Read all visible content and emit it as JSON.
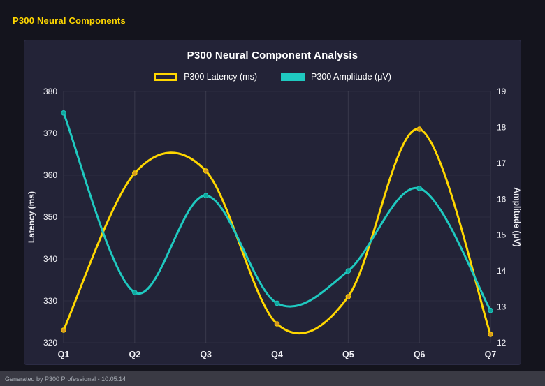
{
  "header": {
    "title": "P300 Neural Components"
  },
  "chart": {
    "title": "P300 Neural Component Analysis"
  },
  "chart_data": {
    "type": "line",
    "title": "P300 Neural Component Analysis",
    "categories": [
      "Q1",
      "Q2",
      "Q3",
      "Q4",
      "Q5",
      "Q6",
      "Q7"
    ],
    "series": [
      {
        "name": "P300 Latency (ms)",
        "axis": "left",
        "color": "#FFD700",
        "marker_color": "#D99A1F",
        "swatch": "outline",
        "values": [
          323,
          360.5,
          361,
          324.5,
          331,
          371,
          322
        ]
      },
      {
        "name": "P300 Amplitude (μV)",
        "axis": "right",
        "color": "#1FC9C0",
        "marker_color": "#0FA79E",
        "swatch": "solid",
        "values": [
          18.4,
          13.4,
          16.1,
          13.1,
          14.0,
          16.3,
          12.9
        ]
      }
    ],
    "left_axis": {
      "label": "Latency (ms)",
      "min": 320,
      "max": 380,
      "ticks": [
        320,
        330,
        340,
        350,
        360,
        370,
        380
      ]
    },
    "right_axis": {
      "label": "Amplitude (μV)",
      "min": 12,
      "max": 19,
      "ticks": [
        12,
        13,
        14,
        15,
        16,
        17,
        18,
        19
      ]
    },
    "grid": true,
    "legend_position": "top"
  },
  "footer": {
    "text": "Generated by P300 Professional - 10:05:14"
  },
  "colors": {
    "accent_yellow": "#FFD700",
    "accent_teal": "#1FC9C0",
    "page_bg": "#14141d",
    "panel_bg": "#232337",
    "footer_bg": "#3a3a44",
    "text": "#f0f0f5"
  }
}
